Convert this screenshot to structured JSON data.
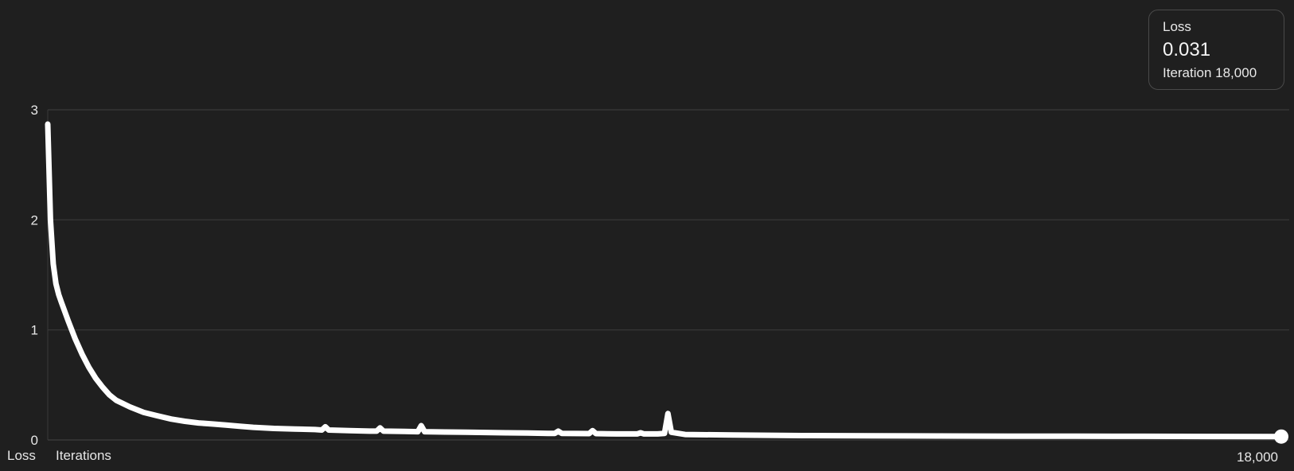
{
  "chart_data": {
    "type": "line",
    "title": "",
    "xlabel": "Iterations",
    "ylabel": "Loss",
    "xlim": [
      0,
      18000
    ],
    "ylim": [
      0,
      3
    ],
    "y_ticks": [
      0,
      1,
      2,
      3
    ],
    "y_tick_labels": [
      "0",
      "1",
      "2",
      "3"
    ],
    "x_tick_labels": [
      "18,000"
    ],
    "x_ticks": [
      18000
    ],
    "grid": true,
    "line_color": "#ffffff",
    "background_color": "#1f1f1f",
    "series": [
      {
        "x": [
          0,
          40,
          80,
          120,
          160,
          200,
          300,
          400,
          500,
          600,
          700,
          800,
          900,
          1000,
          1200,
          1400,
          1600,
          1800,
          2000,
          2200,
          2400,
          2600,
          2800,
          3000,
          3300,
          3600,
          3900,
          4000,
          4050,
          4100,
          4400,
          4700,
          4800,
          4850,
          4900,
          5200,
          5400,
          5450,
          5500,
          5800,
          6100,
          6400,
          6700,
          7000,
          7300,
          7400,
          7450,
          7500,
          7900,
          7950,
          8000,
          8300,
          8600,
          8650,
          8700,
          8900,
          9000,
          9050,
          9100,
          9300,
          10000,
          11000,
          12000,
          13000,
          14000,
          15000,
          16000,
          17000,
          18000
        ],
        "y": [
          2.87,
          2.0,
          1.6,
          1.42,
          1.32,
          1.25,
          1.08,
          0.92,
          0.78,
          0.66,
          0.56,
          0.48,
          0.41,
          0.36,
          0.3,
          0.25,
          0.22,
          0.19,
          0.17,
          0.155,
          0.145,
          0.135,
          0.125,
          0.115,
          0.105,
          0.1,
          0.095,
          0.09,
          0.12,
          0.09,
          0.085,
          0.08,
          0.08,
          0.11,
          0.08,
          0.078,
          0.075,
          0.13,
          0.075,
          0.072,
          0.07,
          0.068,
          0.065,
          0.063,
          0.06,
          0.06,
          0.08,
          0.06,
          0.058,
          0.085,
          0.058,
          0.055,
          0.055,
          0.065,
          0.055,
          0.055,
          0.06,
          0.24,
          0.07,
          0.05,
          0.045,
          0.04,
          0.038,
          0.036,
          0.035,
          0.034,
          0.033,
          0.032,
          0.031
        ]
      }
    ]
  },
  "legend": {
    "title": "Loss",
    "value": "0.031",
    "iteration": "Iteration 18,000"
  },
  "axis_labels": {
    "y": "Loss",
    "x": "Iterations"
  }
}
